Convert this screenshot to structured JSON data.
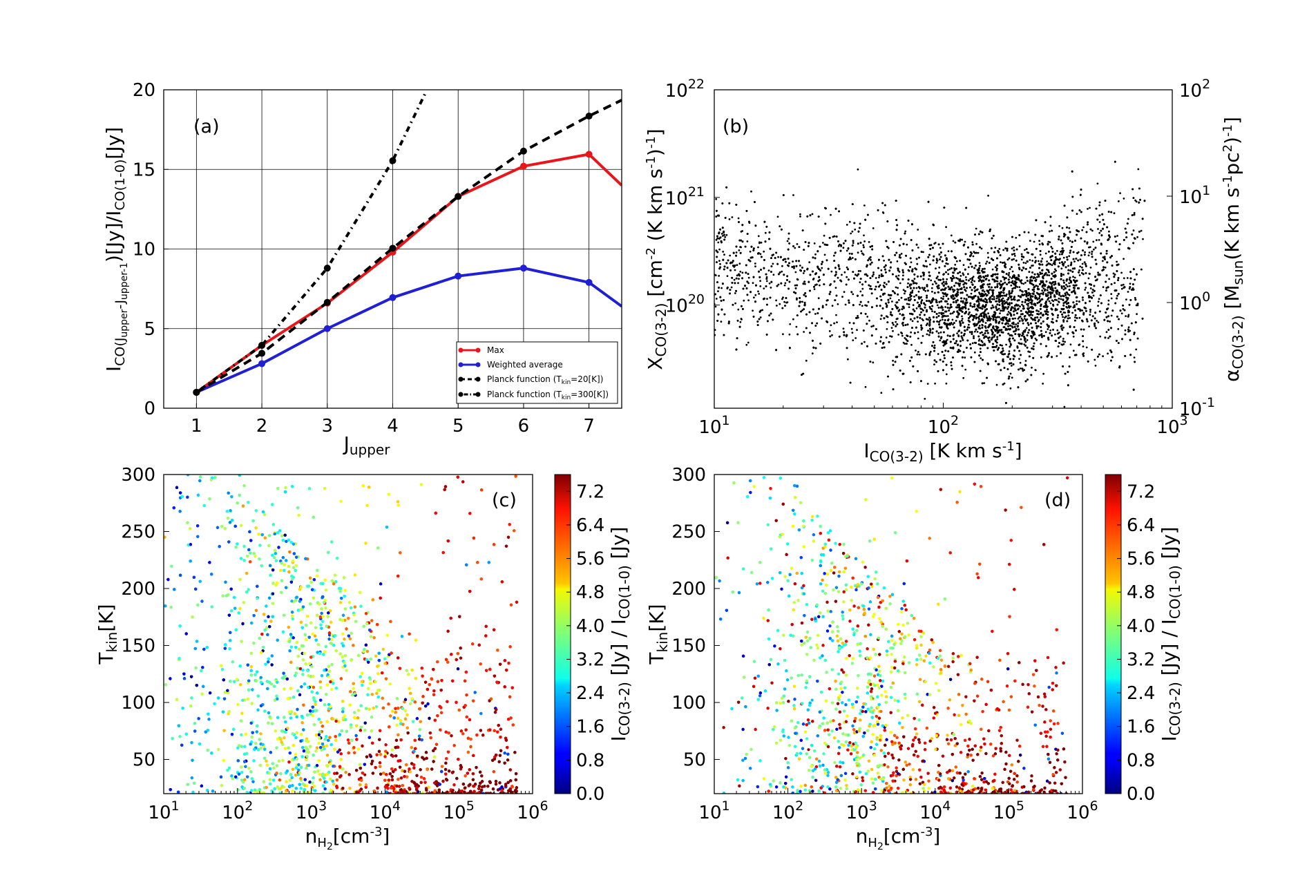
{
  "chart_data": [
    {
      "panel": "a",
      "type": "line",
      "panel_label": "(a)",
      "xlabel_main": "J",
      "xlabel_sub": "upper",
      "ylabel": "I_CO(Jupper-Jupper-1)[Jy]/I_CO(1-0)[Jy]",
      "xlim": [
        0.5,
        7.5
      ],
      "ylim": [
        0,
        20
      ],
      "xticks": [
        "1",
        "2",
        "3",
        "4",
        "5",
        "6",
        "7"
      ],
      "yticks": [
        "0",
        "5",
        "10",
        "15",
        "20"
      ],
      "grid": true,
      "legend_position": "lower-right",
      "x": [
        1,
        2,
        3,
        4,
        5,
        6,
        7
      ],
      "series": [
        {
          "name": "Max",
          "color": "#e8161b",
          "style": "solid",
          "values": [
            1.0,
            3.95,
            6.6,
            9.8,
            13.3,
            15.2,
            15.95
          ],
          "tail_end": [
            7.5,
            14.0
          ]
        },
        {
          "name": "Weighted average",
          "color": "#1f1fd6",
          "style": "solid",
          "values": [
            1.0,
            2.8,
            5.0,
            6.95,
            8.3,
            8.8,
            7.9
          ],
          "tail_end": [
            7.5,
            6.4
          ]
        },
        {
          "name": "Planck function (T",
          "name_sub": "kin",
          "name_end": "=20[K])",
          "color": "#000000",
          "style": "dashed",
          "values": [
            1.0,
            3.45,
            6.65,
            10.05,
            13.3,
            16.15,
            18.35
          ],
          "tail_end": [
            7.5,
            19.35
          ]
        },
        {
          "name": "Planck function (T",
          "name_sub": "kin",
          "name_end": "=300[K])",
          "color": "#000000",
          "style": "dashdot",
          "values": [
            1.0,
            3.95,
            8.8,
            15.55,
            null,
            null,
            null
          ],
          "tail_end": [
            4.5,
            19.8
          ]
        }
      ]
    },
    {
      "panel": "b",
      "type": "scatter",
      "panel_label": "(b)",
      "xlabel": "I_CO(3-2) [K km s-1]",
      "ylabel_left": "X_CO(3-2) [cm-2 (K km s-1)-1]",
      "ylabel_right": "alpha_CO(3-2) [Msun (K km s-1 pc2)-1]",
      "xscale": "log",
      "yscale": "log",
      "xlim": [
        10,
        1000
      ],
      "ylim": [
        1.1e+19,
        1e+22
      ],
      "xticks": [
        10,
        100,
        1000
      ],
      "yticks_left": [
        "10^20",
        "10^21",
        "10^22"
      ],
      "yticks_right": [
        "10^-1",
        "10^0",
        "10^1",
        "10^2"
      ],
      "color": "#000000",
      "points_approx": 15000
    },
    {
      "panel": "c",
      "type": "scatter",
      "panel_label": "(c)",
      "xlabel": "n_H2[cm-3]",
      "ylabel": "T_kin[K]",
      "xscale": "log",
      "xlim": [
        10,
        1000000
      ],
      "ylim": [
        20,
        300
      ],
      "xticks": [
        "10^1",
        "10^2",
        "10^3",
        "10^4",
        "10^5",
        "10^6"
      ],
      "yticks": [
        "50",
        "100",
        "150",
        "200",
        "250",
        "300"
      ],
      "colorbar": {
        "label": "I_CO(3-2) [Jy] / I_CO(1-0) [Jy]",
        "range": [
          0.0,
          7.6
        ],
        "ticks": [
          "0.0",
          "0.8",
          "1.6",
          "2.4",
          "3.2",
          "4.0",
          "4.8",
          "5.6",
          "6.4",
          "7.2"
        ],
        "cmap": "jet"
      }
    },
    {
      "panel": "d",
      "type": "scatter",
      "panel_label": "(d)",
      "xlabel": "n_H2[cm-3]",
      "ylabel": "T_kin[K]",
      "xscale": "log",
      "xlim": [
        10,
        1000000
      ],
      "ylim": [
        20,
        300
      ],
      "xticks": [
        "10^1",
        "10^2",
        "10^3",
        "10^4",
        "10^5",
        "10^6"
      ],
      "yticks": [
        "50",
        "100",
        "150",
        "200",
        "250",
        "300"
      ],
      "colorbar": {
        "label": "I_CO(3-2) [Jy] / I_CO(1-0) [Jy]",
        "range": [
          0.0,
          7.6
        ],
        "ticks": [
          "0.0",
          "0.8",
          "1.6",
          "2.4",
          "3.2",
          "4.0",
          "4.8",
          "5.6",
          "6.4",
          "7.2"
        ],
        "cmap": "jet"
      }
    }
  ]
}
